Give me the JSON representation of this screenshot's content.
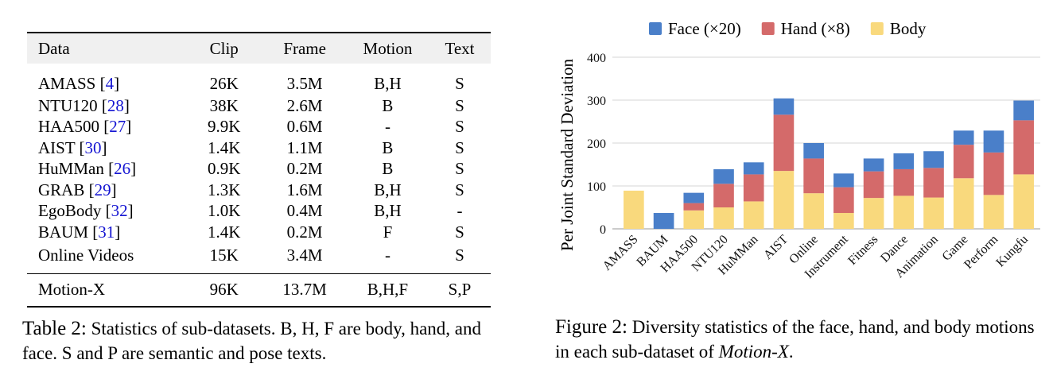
{
  "table": {
    "columns": [
      "Data",
      "Clip",
      "Frame",
      "Motion",
      "Text"
    ],
    "rows": [
      {
        "name": "AMASS",
        "ref": "4",
        "clip": "26K",
        "frame": "3.5M",
        "motion": "B,H",
        "text": "S"
      },
      {
        "name": "NTU120",
        "ref": "28",
        "clip": "38K",
        "frame": "2.6M",
        "motion": "B",
        "text": "S"
      },
      {
        "name": "HAA500",
        "ref": "27",
        "clip": "9.9K",
        "frame": "0.6M",
        "motion": "-",
        "text": "S"
      },
      {
        "name": "AIST",
        "ref": "30",
        "clip": "1.4K",
        "frame": "1.1M",
        "motion": "B",
        "text": "S"
      },
      {
        "name": "HuMMan",
        "ref": "26",
        "clip": "0.9K",
        "frame": "0.2M",
        "motion": "B",
        "text": "S"
      },
      {
        "name": "GRAB",
        "ref": "29",
        "clip": "1.3K",
        "frame": "1.6M",
        "motion": "B,H",
        "text": "S"
      },
      {
        "name": "EgoBody",
        "ref": "32",
        "clip": "1.0K",
        "frame": "0.4M",
        "motion": "B,H",
        "text": "-"
      },
      {
        "name": "BAUM",
        "ref": "31",
        "clip": "1.4K",
        "frame": "0.2M",
        "motion": "F",
        "text": "S"
      },
      {
        "name": "Online Videos",
        "ref": "",
        "clip": "15K",
        "frame": "3.4M",
        "motion": "-",
        "text": "S"
      }
    ],
    "summary": {
      "name": "Motion-X",
      "clip": "96K",
      "frame": "13.7M",
      "motion": "B,H,F",
      "text": "S,P"
    }
  },
  "table_caption": {
    "label": "Table 2:",
    "text": " Statistics of sub-datasets. B, H, F are body, hand, and face. S and P are semantic and pose texts."
  },
  "figure_caption": {
    "label": "Figure 2:",
    "text": " Diversity statistics of the face, hand, and body motions in each sub-dataset of ",
    "emph": "Motion-X",
    "end": "."
  },
  "chart_data": {
    "type": "bar",
    "stacked": true,
    "categories": [
      "AMASS",
      "BAUM",
      "HAA500",
      "NTU120",
      "HuMMan",
      "AIST",
      "Online",
      "Instrument",
      "Fitness",
      "Dance",
      "Animation",
      "Game",
      "Perform",
      "Kungfu"
    ],
    "series": [
      {
        "name": "Body",
        "color": "#f9d97d",
        "values": [
          89,
          0,
          43,
          50,
          64,
          135,
          83,
          37,
          72,
          77,
          73,
          118,
          79,
          127
        ]
      },
      {
        "name": "Hand (×8)",
        "color": "#d46a6a",
        "values": [
          0,
          0,
          17,
          55,
          63,
          131,
          81,
          60,
          62,
          62,
          69,
          78,
          99,
          126
        ]
      },
      {
        "name": "Face (×20)",
        "color": "#4a7fc9",
        "values": [
          0,
          37,
          24,
          34,
          28,
          38,
          36,
          32,
          30,
          37,
          39,
          33,
          51,
          46
        ]
      }
    ],
    "legend_order": [
      "Face (×20)",
      "Hand (×8)",
      "Body"
    ],
    "ylabel": "Per Joint Standard Deviation",
    "xlabel": "",
    "ylim": [
      0,
      400
    ],
    "yticks": [
      0,
      100,
      200,
      300,
      400
    ],
    "grid": true,
    "legend": "top"
  }
}
